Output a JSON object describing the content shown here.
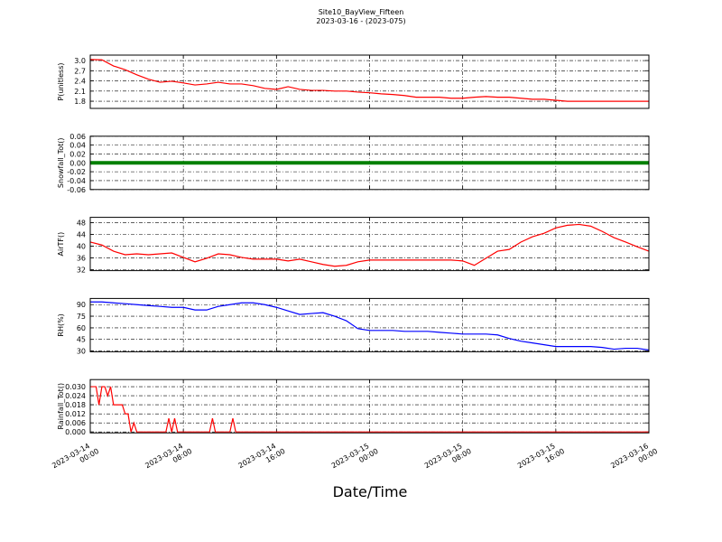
{
  "title": "Site10_BayView_Fifteen",
  "subtitle": "2023-03-16 - (2023-075)",
  "xlabel": "Date/Time",
  "chart_data": [
    {
      "type": "line",
      "ylabel": "P(unitless)",
      "color": "#ff0000",
      "grid": true,
      "xlim": [
        "2023-03-14 00:00",
        "2023-03-16 00:00"
      ],
      "xticks": [
        "2023-03-14 00:00",
        "2023-03-14 08:00",
        "2023-03-14 16:00",
        "2023-03-15 00:00",
        "2023-03-15 08:00",
        "2023-03-15 16:00",
        "2023-03-16 00:00"
      ],
      "ylim": [
        1.59,
        3.16
      ],
      "yticks": [
        1.8,
        2.1,
        2.4,
        2.7,
        {
          "value": 3,
          "label": "3.0"
        }
      ],
      "x": [
        "2023-03-14 00:00",
        "2023-03-14 01:00",
        "2023-03-14 02:00",
        "2023-03-14 03:00",
        "2023-03-14 04:00",
        "2023-03-14 05:00",
        "2023-03-14 06:00",
        "2023-03-14 07:00",
        "2023-03-14 08:00",
        "2023-03-14 09:00",
        "2023-03-14 10:00",
        "2023-03-14 11:00",
        "2023-03-14 12:00",
        "2023-03-14 13:00",
        "2023-03-14 14:00",
        "2023-03-14 15:00",
        "2023-03-14 16:00",
        "2023-03-14 17:00",
        "2023-03-14 18:00",
        "2023-03-14 19:00",
        "2023-03-14 20:00",
        "2023-03-14 21:00",
        "2023-03-14 22:00",
        "2023-03-14 23:00",
        "2023-03-15 00:00",
        "2023-03-15 01:00",
        "2023-03-15 02:00",
        "2023-03-15 03:00",
        "2023-03-15 04:00",
        "2023-03-15 05:00",
        "2023-03-15 06:00",
        "2023-03-15 07:00",
        "2023-03-15 08:00",
        "2023-03-15 09:00",
        "2023-03-15 10:00",
        "2023-03-15 11:00",
        "2023-03-15 12:00",
        "2023-03-15 13:00",
        "2023-03-15 14:00",
        "2023-03-15 15:00",
        "2023-03-15 16:00",
        "2023-03-15 17:00",
        "2023-03-15 18:00",
        "2023-03-15 19:00",
        "2023-03-15 20:00",
        "2023-03-15 21:00",
        "2023-03-15 22:00",
        "2023-03-15 23:00",
        "2023-03-16 00:00"
      ],
      "values": [
        3.03,
        3.02,
        2.84,
        2.73,
        2.58,
        2.45,
        2.36,
        2.39,
        2.34,
        2.28,
        2.31,
        2.36,
        2.31,
        2.31,
        2.26,
        2.18,
        2.15,
        2.23,
        2.15,
        2.12,
        2.12,
        2.1,
        2.1,
        2.07,
        2.05,
        2.02,
        2.0,
        1.97,
        1.92,
        1.92,
        1.92,
        1.89,
        1.89,
        1.92,
        1.94,
        1.92,
        1.92,
        1.89,
        1.86,
        1.86,
        1.83,
        1.8,
        1.8,
        1.8,
        1.8,
        1.8,
        1.8,
        1.8,
        1.8
      ]
    },
    {
      "type": "line",
      "ylabel": "Snowfall_Tot()",
      "color": "#008000",
      "grid": true,
      "xlim": [
        "2023-03-14 00:00",
        "2023-03-16 00:00"
      ],
      "xticks": [
        "2023-03-14 00:00",
        "2023-03-14 08:00",
        "2023-03-14 16:00",
        "2023-03-15 00:00",
        "2023-03-15 08:00",
        "2023-03-15 16:00",
        "2023-03-16 00:00"
      ],
      "ylim": [
        -0.06,
        0.06
      ],
      "yticks": [
        -0.06,
        -0.04,
        -0.02,
        {
          "value": 0,
          "label": "0.00"
        },
        0.02,
        0.04,
        0.06
      ],
      "x": [
        "2023-03-14 00:00",
        "2023-03-14 01:00",
        "2023-03-14 02:00",
        "2023-03-14 03:00",
        "2023-03-14 04:00",
        "2023-03-14 05:00",
        "2023-03-14 06:00",
        "2023-03-14 07:00",
        "2023-03-14 08:00",
        "2023-03-14 09:00",
        "2023-03-14 10:00",
        "2023-03-14 11:00",
        "2023-03-14 12:00",
        "2023-03-14 13:00",
        "2023-03-14 14:00",
        "2023-03-14 15:00",
        "2023-03-14 16:00",
        "2023-03-14 17:00",
        "2023-03-14 18:00",
        "2023-03-14 19:00",
        "2023-03-14 20:00",
        "2023-03-14 21:00",
        "2023-03-14 22:00",
        "2023-03-14 23:00",
        "2023-03-15 00:00",
        "2023-03-15 01:00",
        "2023-03-15 02:00",
        "2023-03-15 03:00",
        "2023-03-15 04:00",
        "2023-03-15 05:00",
        "2023-03-15 06:00",
        "2023-03-15 07:00",
        "2023-03-15 08:00",
        "2023-03-15 09:00",
        "2023-03-15 10:00",
        "2023-03-15 11:00",
        "2023-03-15 12:00",
        "2023-03-15 13:00",
        "2023-03-15 14:00",
        "2023-03-15 15:00",
        "2023-03-15 16:00",
        "2023-03-15 17:00",
        "2023-03-15 18:00",
        "2023-03-15 19:00",
        "2023-03-15 20:00",
        "2023-03-15 21:00",
        "2023-03-15 22:00",
        "2023-03-15 23:00",
        "2023-03-16 00:00"
      ],
      "values": [
        0,
        0,
        0,
        0,
        0,
        0,
        0,
        0,
        0,
        0,
        0,
        0,
        0,
        0,
        0,
        0,
        0,
        0,
        0,
        0,
        0,
        0,
        0,
        0,
        0,
        0,
        0,
        0,
        0,
        0,
        0,
        0,
        0,
        0,
        0,
        0,
        0,
        0,
        0,
        0,
        0,
        0,
        0,
        0,
        0,
        0,
        0,
        0,
        0
      ]
    },
    {
      "type": "line",
      "ylabel": "AirTF()",
      "color": "#ff0000",
      "grid": true,
      "xlim": [
        "2023-03-14 00:00",
        "2023-03-16 00:00"
      ],
      "xticks": [
        "2023-03-14 00:00",
        "2023-03-14 08:00",
        "2023-03-14 16:00",
        "2023-03-15 00:00",
        "2023-03-15 08:00",
        "2023-03-15 16:00",
        "2023-03-16 00:00"
      ],
      "ylim": [
        31.7,
        49.8
      ],
      "yticks": [
        32,
        36,
        40,
        44,
        48
      ],
      "x": [
        "2023-03-14 00:00",
        "2023-03-14 01:00",
        "2023-03-14 02:00",
        "2023-03-14 03:00",
        "2023-03-14 04:00",
        "2023-03-14 05:00",
        "2023-03-14 06:00",
        "2023-03-14 07:00",
        "2023-03-14 08:00",
        "2023-03-14 09:00",
        "2023-03-14 10:00",
        "2023-03-14 11:00",
        "2023-03-14 12:00",
        "2023-03-14 13:00",
        "2023-03-14 14:00",
        "2023-03-14 15:00",
        "2023-03-14 16:00",
        "2023-03-14 17:00",
        "2023-03-14 18:00",
        "2023-03-14 19:00",
        "2023-03-14 20:00",
        "2023-03-14 21:00",
        "2023-03-14 22:00",
        "2023-03-14 23:00",
        "2023-03-15 00:00",
        "2023-03-15 01:00",
        "2023-03-15 02:00",
        "2023-03-15 03:00",
        "2023-03-15 04:00",
        "2023-03-15 05:00",
        "2023-03-15 06:00",
        "2023-03-15 07:00",
        "2023-03-15 08:00",
        "2023-03-15 09:00",
        "2023-03-15 10:00",
        "2023-03-15 11:00",
        "2023-03-15 12:00",
        "2023-03-15 13:00",
        "2023-03-15 14:00",
        "2023-03-15 15:00",
        "2023-03-15 16:00",
        "2023-03-15 17:00",
        "2023-03-15 18:00",
        "2023-03-15 19:00",
        "2023-03-15 20:00",
        "2023-03-15 21:00",
        "2023-03-15 22:00",
        "2023-03-15 23:00",
        "2023-03-16 00:00"
      ],
      "values": [
        41.4,
        40.4,
        38.3,
        37.1,
        37.4,
        37.1,
        37.4,
        37.7,
        36.2,
        34.7,
        35.9,
        37.4,
        37.1,
        36.2,
        35.6,
        35.6,
        35.6,
        35.0,
        35.6,
        34.7,
        33.8,
        33.2,
        33.5,
        34.7,
        35.3,
        35.3,
        35.3,
        35.3,
        35.3,
        35.3,
        35.3,
        35.3,
        35.0,
        33.5,
        35.9,
        38.3,
        38.9,
        41.4,
        43.2,
        44.4,
        46.2,
        47.1,
        47.4,
        46.8,
        45.0,
        42.9,
        41.4,
        39.8,
        38.3
      ]
    },
    {
      "type": "line",
      "ylabel": "RH(%)",
      "color": "#0000ff",
      "grid": true,
      "xlim": [
        "2023-03-14 00:00",
        "2023-03-16 00:00"
      ],
      "xticks": [
        "2023-03-14 00:00",
        "2023-03-14 08:00",
        "2023-03-14 16:00",
        "2023-03-15 00:00",
        "2023-03-15 08:00",
        "2023-03-15 16:00",
        "2023-03-16 00:00"
      ],
      "ylim": [
        29,
        98
      ],
      "yticks": [
        30,
        45,
        60,
        75,
        90
      ],
      "x": [
        "2023-03-14 00:00",
        "2023-03-14 01:00",
        "2023-03-14 02:00",
        "2023-03-14 03:00",
        "2023-03-14 04:00",
        "2023-03-14 05:00",
        "2023-03-14 06:00",
        "2023-03-14 07:00",
        "2023-03-14 08:00",
        "2023-03-14 09:00",
        "2023-03-14 10:00",
        "2023-03-14 11:00",
        "2023-03-14 12:00",
        "2023-03-14 13:00",
        "2023-03-14 14:00",
        "2023-03-14 15:00",
        "2023-03-14 16:00",
        "2023-03-14 17:00",
        "2023-03-14 18:00",
        "2023-03-14 19:00",
        "2023-03-14 20:00",
        "2023-03-14 21:00",
        "2023-03-14 22:00",
        "2023-03-14 23:00",
        "2023-03-15 00:00",
        "2023-03-15 01:00",
        "2023-03-15 02:00",
        "2023-03-15 03:00",
        "2023-03-15 04:00",
        "2023-03-15 05:00",
        "2023-03-15 06:00",
        "2023-03-15 07:00",
        "2023-03-15 08:00",
        "2023-03-15 09:00",
        "2023-03-15 10:00",
        "2023-03-15 11:00",
        "2023-03-15 12:00",
        "2023-03-15 13:00",
        "2023-03-15 14:00",
        "2023-03-15 15:00",
        "2023-03-15 16:00",
        "2023-03-15 17:00",
        "2023-03-15 18:00",
        "2023-03-15 19:00",
        "2023-03-15 20:00",
        "2023-03-15 21:00",
        "2023-03-15 22:00",
        "2023-03-15 23:00",
        "2023-03-16 00:00"
      ],
      "values": [
        93.5,
        93.5,
        92.3,
        91.2,
        90,
        88.8,
        87.7,
        86.5,
        86.5,
        83.1,
        83.1,
        87.7,
        90,
        92.3,
        92.3,
        90,
        86.5,
        81.9,
        77.3,
        78.5,
        79.6,
        75,
        69.2,
        58.9,
        56.6,
        56.6,
        56.6,
        55.4,
        55.4,
        55.4,
        54.2,
        53.1,
        51.9,
        51.9,
        51.9,
        50.8,
        46.2,
        42.7,
        40.4,
        38.1,
        35.8,
        35.8,
        35.8,
        35.8,
        34.6,
        32.3,
        33.5,
        33.5,
        31.2
      ]
    },
    {
      "type": "line",
      "ylabel": "Rainfall_Tot()",
      "color": "#ff0000",
      "grid": true,
      "xlim": [
        "2023-03-14 00:00",
        "2023-03-16 00:00"
      ],
      "xticks": [
        "2023-03-14 00:00",
        "2023-03-14 08:00",
        "2023-03-14 16:00",
        "2023-03-15 00:00",
        "2023-03-15 08:00",
        "2023-03-15 16:00",
        "2023-03-16 00:00"
      ],
      "ylim": [
        -0.0006,
        0.0347
      ],
      "yticks": [
        {
          "value": 0,
          "label": "0.000"
        },
        0.006,
        0.012,
        0.018,
        0.024,
        {
          "value": 0.03,
          "label": "0.030"
        }
      ],
      "x": [
        "2023-03-14 00:00",
        "2023-03-14 00:15",
        "2023-03-14 00:30",
        "2023-03-14 00:45",
        "2023-03-14 01:00",
        "2023-03-14 01:15",
        "2023-03-14 01:30",
        "2023-03-14 01:45",
        "2023-03-14 02:00",
        "2023-03-14 02:45",
        "2023-03-14 03:00",
        "2023-03-14 03:15",
        "2023-03-14 03:30",
        "2023-03-14 03:45",
        "2023-03-14 04:00",
        "2023-03-14 06:30",
        "2023-03-14 06:45",
        "2023-03-14 07:00",
        "2023-03-14 07:15",
        "2023-03-14 07:30",
        "2023-03-14 10:15",
        "2023-03-14 10:30",
        "2023-03-14 10:45",
        "2023-03-14 12:00",
        "2023-03-14 12:15",
        "2023-03-14 12:30",
        "2023-03-16 00:00"
      ],
      "values": [
        0.03,
        0.03,
        0.03,
        0.018,
        0.03,
        0.03,
        0.024,
        0.03,
        0.018,
        0.018,
        0.012,
        0.012,
        0,
        0.006,
        0,
        0,
        0.009,
        0,
        0.009,
        0,
        0,
        0.009,
        0,
        0,
        0.009,
        0,
        0
      ]
    }
  ]
}
